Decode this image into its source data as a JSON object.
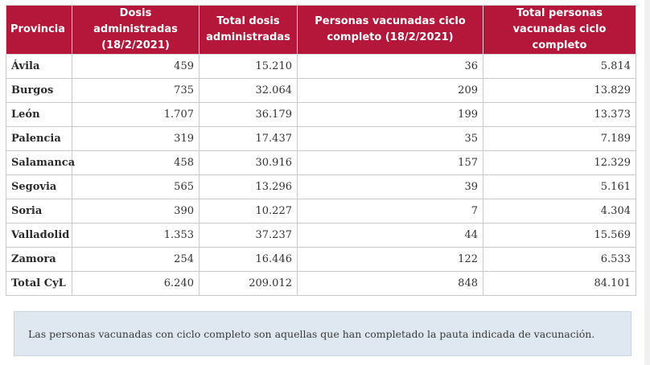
{
  "table": {
    "headers": [
      "Provincia",
      "Dosis administradas (18/2/2021)",
      "Total dosis administradas",
      "Personas vacunadas ciclo completo (18/2/2021)",
      "Total personas vacunadas ciclo completo"
    ],
    "rows": [
      {
        "provincia": "Ávila",
        "dosis": "459",
        "total_dosis": "15.210",
        "personas": "36",
        "total_personas": "5.814"
      },
      {
        "provincia": "Burgos",
        "dosis": "735",
        "total_dosis": "32.064",
        "personas": "209",
        "total_personas": "13.829"
      },
      {
        "provincia": "León",
        "dosis": "1.707",
        "total_dosis": "36.179",
        "personas": "199",
        "total_personas": "13.373"
      },
      {
        "provincia": "Palencia",
        "dosis": "319",
        "total_dosis": "17.437",
        "personas": "35",
        "total_personas": "7.189"
      },
      {
        "provincia": "Salamanca",
        "dosis": "458",
        "total_dosis": "30.916",
        "personas": "157",
        "total_personas": "12.329"
      },
      {
        "provincia": "Segovia",
        "dosis": "565",
        "total_dosis": "13.296",
        "personas": "39",
        "total_personas": "5.161"
      },
      {
        "provincia": "Soria",
        "dosis": "390",
        "total_dosis": "10.227",
        "personas": "7",
        "total_personas": "4.304"
      },
      {
        "provincia": "Valladolid",
        "dosis": "1.353",
        "total_dosis": "37.237",
        "personas": "44",
        "total_personas": "15.569"
      },
      {
        "provincia": "Zamora",
        "dosis": "254",
        "total_dosis": "16.446",
        "personas": "122",
        "total_personas": "6.533"
      },
      {
        "provincia": "Total CyL",
        "dosis": "6.240",
        "total_dosis": "209.012",
        "personas": "848",
        "total_personas": "84.101"
      }
    ]
  },
  "note": {
    "text": "Las personas vacunadas con ciclo completo son aquellas que han completado la pauta indicada de vacunación."
  },
  "colors": {
    "header_bg": "#b5173a",
    "header_text": "#ffffff",
    "note_bg": "#dfe8f1"
  }
}
